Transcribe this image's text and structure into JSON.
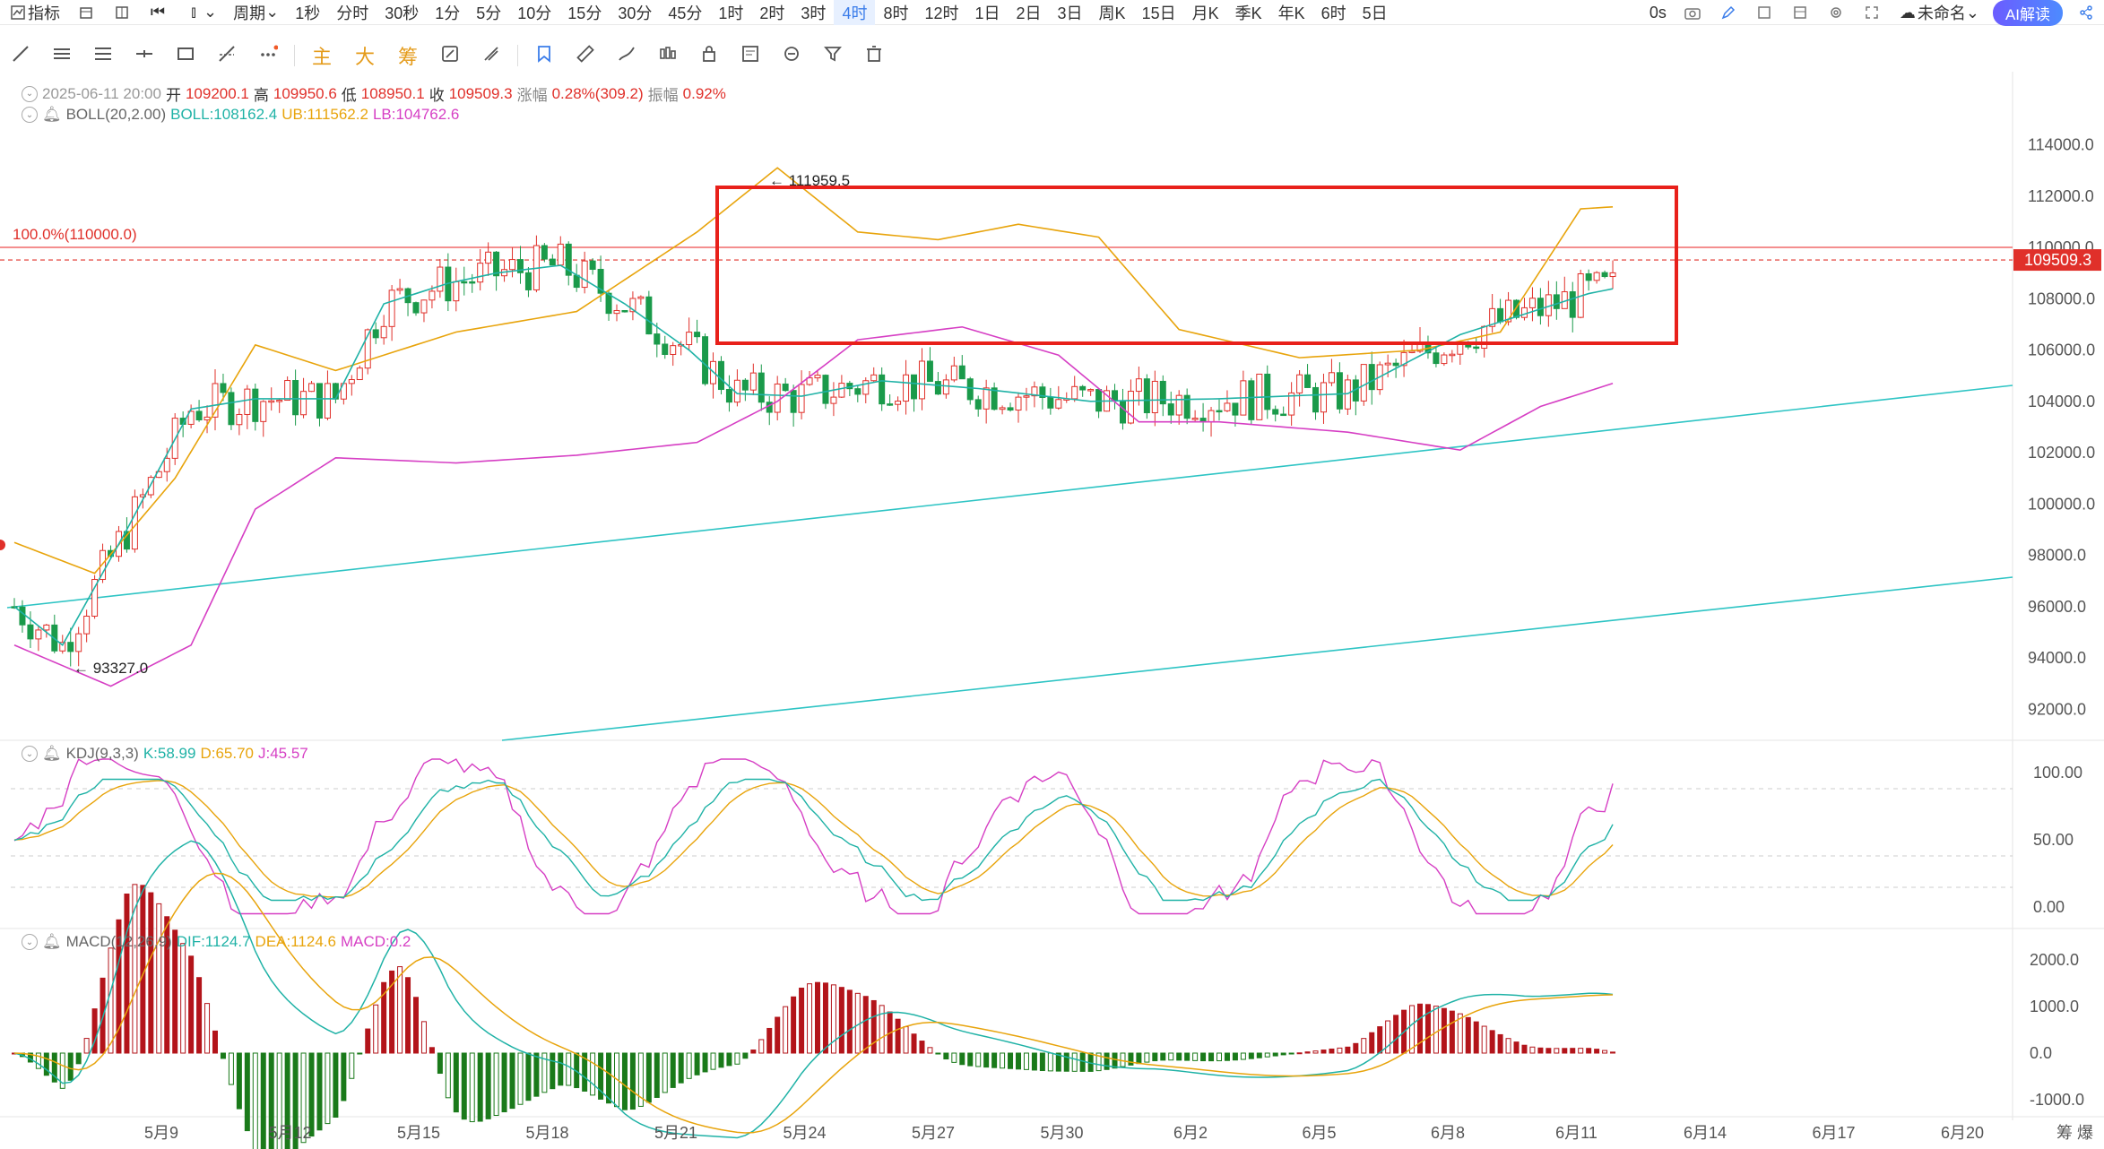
{
  "topbar": {
    "items": [
      "指标",
      "周期",
      "1秒",
      "分时",
      "30秒",
      "1分",
      "5分",
      "10分",
      "15分",
      "30分",
      "45分",
      "1时",
      "2时",
      "3时",
      "4时",
      "8时",
      "12时",
      "1日",
      "2日",
      "3日",
      "周K",
      "15日",
      "月K",
      "季K",
      "年K",
      "6时",
      "5日"
    ],
    "active": "4时",
    "right": {
      "counter": "0s",
      "layout_name": "未命名",
      "ai_label": "AI解读"
    }
  },
  "toolbar": {
    "text_tools": [
      "主",
      "大",
      "筹"
    ]
  },
  "ohlc": {
    "date": "2025-06-11 20:00",
    "open_label": "开",
    "open": "109200.1",
    "high_label": "高",
    "high": "109950.6",
    "low_label": "低",
    "low": "108950.1",
    "close_label": "收",
    "close": "109509.3",
    "change_label": "涨幅",
    "change": "0.28%(309.2)",
    "amp_label": "振幅",
    "amp": "0.92%"
  },
  "boll": {
    "name": "BOLL(20,2.00)",
    "mid": "BOLL:108162.4",
    "ub": "UB:111562.2",
    "lb": "LB:104762.6"
  },
  "kdj": {
    "name": "KDJ(9,3,3)",
    "k": "K:58.99",
    "d": "D:65.70",
    "j": "J:45.57"
  },
  "macd": {
    "name": "MACD(12,26,9)",
    "dif": "DIF:1124.7",
    "dea": "DEA:1124.6",
    "macd": "MACD:0.2"
  },
  "chart_data": {
    "type": "candlestick",
    "price_axis": [
      "114000.0",
      "112000.0",
      "110000.0",
      "108000.0",
      "106000.0",
      "104000.0",
      "102000.0",
      "100000.0",
      "98000.0",
      "96000.0",
      "94000.0",
      "92000.0"
    ],
    "price_ylim": [
      91000,
      115100
    ],
    "kdj_axis": [
      "100.00",
      "50.00",
      "0.00"
    ],
    "macd_axis": [
      "2000.0",
      "1000.0",
      "0.0",
      "-1000.0"
    ],
    "dates": [
      "5月9",
      "5月12",
      "5月15",
      "5月18",
      "5月21",
      "5月24",
      "5月27",
      "5月30",
      "6月2",
      "6月5",
      "6月8",
      "6月11",
      "6月14",
      "6月17",
      "6月20"
    ],
    "fib_label": "100.0%(110000.0)",
    "fib_level": 110000,
    "last_price": "109509.3",
    "last_price_value": 109509.3,
    "high_mark": "111959.5",
    "low_mark": "93327.0",
    "right_cut_label": "筹 爆",
    "trend_anchors": [
      {
        "name": "BOLL-mid",
        "values": [
          [
            0,
            96000
          ],
          [
            6,
            94500
          ],
          [
            14,
            99000
          ],
          [
            22,
            103700
          ],
          [
            30,
            104100
          ],
          [
            40,
            104100
          ],
          [
            46,
            107800
          ],
          [
            54,
            108600
          ],
          [
            60,
            109000
          ],
          [
            68,
            109300
          ],
          [
            76,
            107800
          ],
          [
            84,
            106000
          ],
          [
            90,
            104300
          ],
          [
            98,
            104200
          ],
          [
            108,
            104800
          ],
          [
            120,
            104500
          ],
          [
            134,
            104000
          ],
          [
            150,
            104100
          ],
          [
            166,
            104300
          ],
          [
            180,
            106600
          ],
          [
            196,
            108200
          ]
        ]
      },
      {
        "name": "BOLL-ub",
        "values": [
          [
            0,
            98500
          ],
          [
            10,
            97300
          ],
          [
            20,
            101000
          ],
          [
            30,
            106200
          ],
          [
            40,
            105200
          ],
          [
            55,
            106700
          ],
          [
            70,
            107500
          ],
          [
            85,
            110600
          ],
          [
            95,
            113100
          ],
          [
            105,
            110600
          ],
          [
            115,
            110300
          ],
          [
            125,
            110900
          ],
          [
            135,
            110400
          ],
          [
            145,
            106800
          ],
          [
            160,
            105700
          ],
          [
            175,
            106000
          ],
          [
            185,
            106700
          ],
          [
            195,
            111500
          ],
          [
            200,
            111600
          ]
        ]
      },
      {
        "name": "BOLL-lb",
        "values": [
          [
            0,
            94500
          ],
          [
            12,
            92900
          ],
          [
            22,
            94500
          ],
          [
            30,
            99800
          ],
          [
            40,
            101800
          ],
          [
            55,
            101600
          ],
          [
            70,
            101900
          ],
          [
            85,
            102400
          ],
          [
            95,
            104000
          ],
          [
            105,
            106400
          ],
          [
            118,
            106900
          ],
          [
            130,
            105800
          ],
          [
            140,
            103200
          ],
          [
            150,
            103200
          ],
          [
            166,
            102800
          ],
          [
            180,
            102100
          ],
          [
            190,
            103800
          ],
          [
            200,
            104800
          ]
        ]
      }
    ]
  }
}
